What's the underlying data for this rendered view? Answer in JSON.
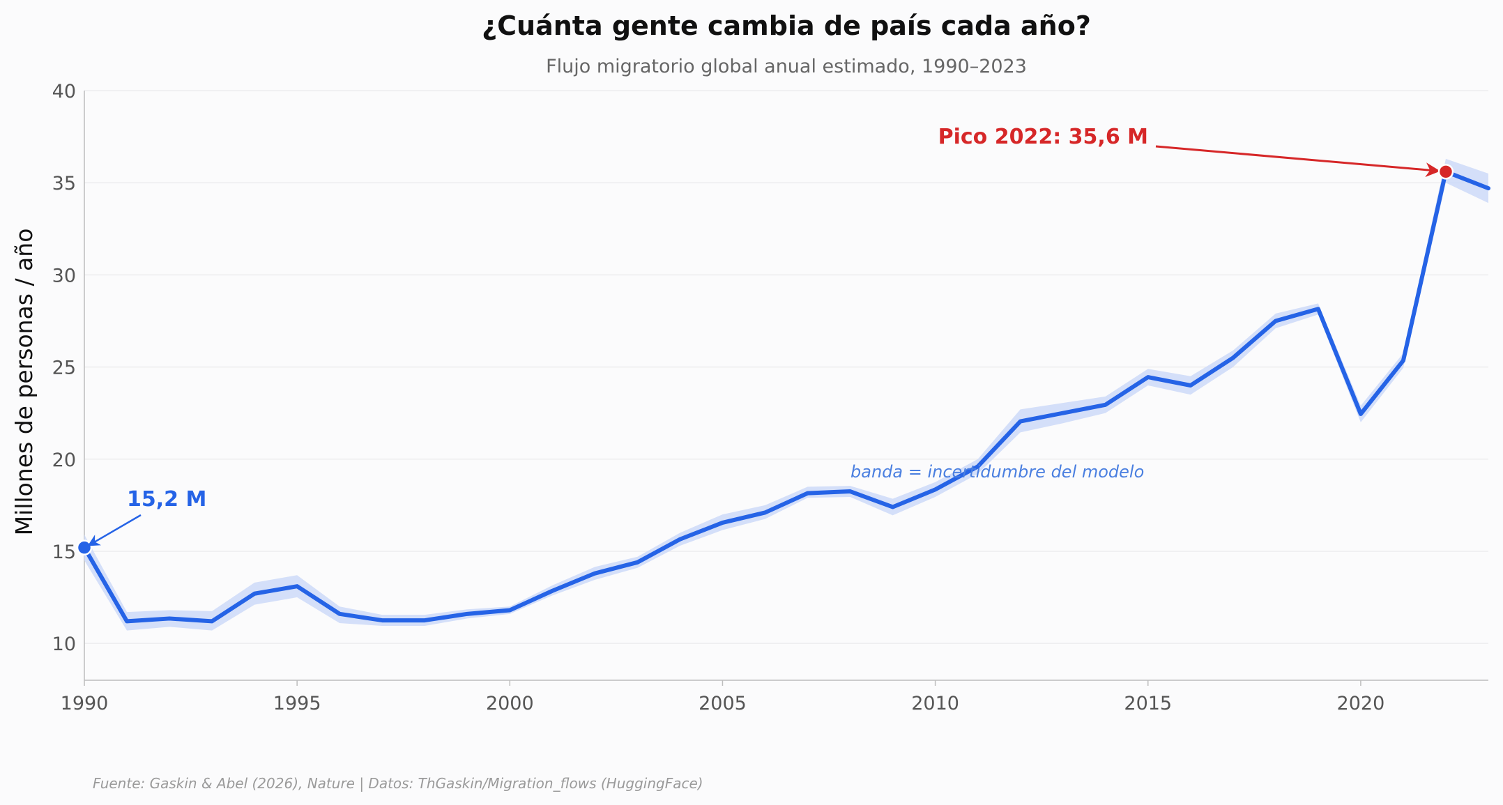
{
  "chart_data": {
    "type": "line",
    "title": "¿Cuánta gente cambia de país cada año?",
    "subtitle": "Flujo migratorio global anual estimado, 1990–2023",
    "xlabel": "",
    "ylabel": "Millones de personas / año",
    "xlim": [
      1990,
      2023
    ],
    "ylim": [
      8,
      40
    ],
    "x_ticks": [
      1990,
      1995,
      2000,
      2005,
      2010,
      2015,
      2020
    ],
    "y_ticks": [
      10,
      15,
      20,
      25,
      30,
      35,
      40
    ],
    "grid": "horizontal",
    "x": [
      1990,
      1991,
      1992,
      1993,
      1994,
      1995,
      1996,
      1997,
      1998,
      1999,
      2000,
      2001,
      2002,
      2003,
      2004,
      2005,
      2006,
      2007,
      2008,
      2009,
      2010,
      2011,
      2012,
      2013,
      2014,
      2015,
      2016,
      2017,
      2018,
      2019,
      2020,
      2021,
      2022,
      2023
    ],
    "series": [
      {
        "values": [
          15.2,
          11.2,
          11.35,
          11.2,
          12.7,
          13.1,
          11.6,
          11.25,
          11.25,
          11.6,
          11.8,
          12.85,
          13.8,
          14.4,
          15.65,
          16.55,
          17.1,
          18.15,
          18.25,
          17.4,
          18.35,
          19.6,
          22.05,
          22.5,
          22.95,
          24.45,
          24.0,
          25.5,
          27.5,
          28.15,
          22.45,
          25.35,
          35.6,
          34.7
        ],
        "lower": [
          14.5,
          10.7,
          10.9,
          10.7,
          12.1,
          12.5,
          11.1,
          10.95,
          10.95,
          11.35,
          11.6,
          12.6,
          13.45,
          14.1,
          15.3,
          16.15,
          16.75,
          17.9,
          17.95,
          16.95,
          17.95,
          19.2,
          21.45,
          21.95,
          22.5,
          24.0,
          23.5,
          25.0,
          27.1,
          27.85,
          22.0,
          24.95,
          35.0,
          33.9
        ],
        "upper": [
          15.9,
          11.7,
          11.8,
          11.75,
          13.3,
          13.7,
          12.0,
          11.55,
          11.55,
          11.85,
          12.0,
          13.15,
          14.15,
          14.7,
          16.0,
          17.0,
          17.5,
          18.5,
          18.55,
          17.85,
          18.75,
          20.0,
          22.7,
          23.05,
          23.4,
          24.9,
          24.5,
          25.9,
          27.9,
          28.45,
          22.9,
          25.75,
          36.3,
          35.5
        ]
      }
    ],
    "colors": {
      "line": "#2563e6",
      "band": "#cdd9f8",
      "peak": "#d62728",
      "start_annotation": "#2563e6",
      "note": "#4a7fe0"
    },
    "annotations": {
      "start": {
        "label": "15,2 M",
        "x": 1990,
        "y": 15.2
      },
      "peak": {
        "label": "Pico 2022: 35,6 M",
        "x": 2022,
        "y": 35.6
      },
      "note": {
        "label": "banda = incertidumbre del modelo"
      }
    },
    "source": "Fuente: Gaskin & Abel (2026), Nature | Datos: ThGaskin/Migration_flows (HuggingFace)"
  }
}
